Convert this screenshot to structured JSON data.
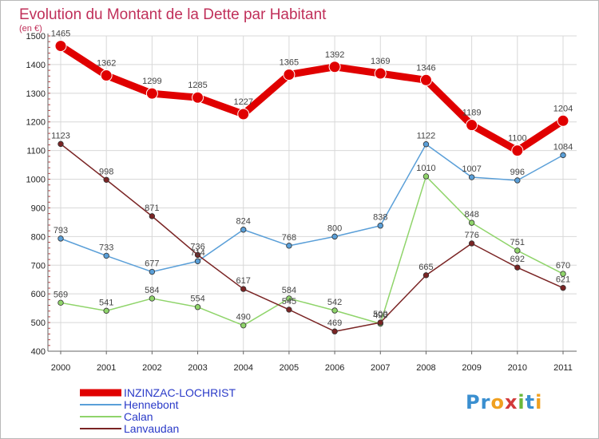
{
  "page": {
    "title": "Evolution du Montant de la Dette par Habitant",
    "subtitle": "(en €)"
  },
  "logo": {
    "text": "Proxiti",
    "letters": [
      "P",
      "r",
      "o",
      "x",
      "i",
      "t",
      "i"
    ],
    "colors": [
      "#3a8fd0",
      "#3a8fd0",
      "#f0a020",
      "#d23a3a",
      "#6ab83a",
      "#3a8fd0",
      "#f0a020"
    ]
  },
  "chart_data": {
    "type": "line",
    "title": "Evolution du Montant de la Dette par Habitant",
    "subtitle": "(en €)",
    "x": [
      "2000",
      "2001",
      "2002",
      "2003",
      "2004",
      "2005",
      "2006",
      "2007",
      "2008",
      "2009",
      "2010",
      "2011"
    ],
    "ylim": [
      400,
      1500
    ],
    "yticks": [
      400,
      500,
      600,
      700,
      800,
      900,
      1000,
      1100,
      1200,
      1300,
      1400,
      1500
    ],
    "grid": true,
    "legend_position": "bottom-left",
    "series": [
      {
        "name": "INZINZAC-LOCHRIST",
        "color": "#e00000",
        "values": [
          1465,
          1362,
          1299,
          1285,
          1227,
          1365,
          1392,
          1369,
          1346,
          1189,
          1100,
          1204
        ]
      },
      {
        "name": "Hennebont",
        "color": "#5a9fd8",
        "values": [
          793,
          733,
          677,
          714,
          824,
          768,
          800,
          838,
          1122,
          1007,
          996,
          1084
        ]
      },
      {
        "name": "Calan",
        "color": "#8fd46a",
        "values": [
          569,
          541,
          584,
          554,
          490,
          584,
          542,
          496,
          1010,
          848,
          751,
          670
        ]
      },
      {
        "name": "Lanvaudan",
        "color": "#7a2424",
        "values": [
          1123,
          998,
          871,
          736,
          617,
          545,
          469,
          500,
          665,
          776,
          692,
          621
        ]
      }
    ]
  }
}
